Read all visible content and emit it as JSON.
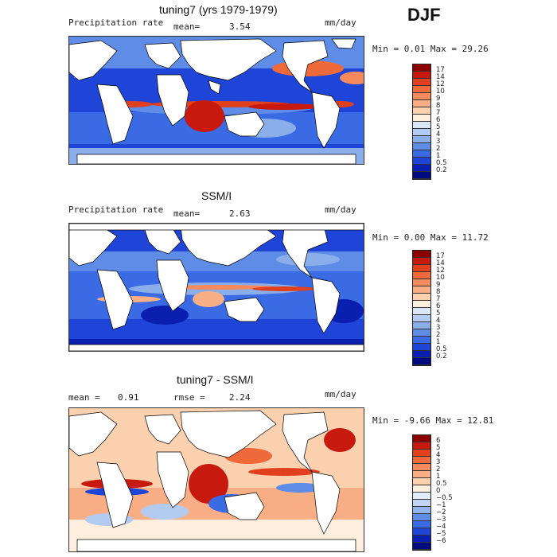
{
  "season": "DJF",
  "panels": [
    {
      "title": "tuning7 (yrs 1979-1979)",
      "left_label": "Precipitation rate",
      "mean_label": "mean=",
      "mean_value": "3.54",
      "units": "mm/day",
      "minmax": "Min =    0.01 Max =   29.26",
      "colorbar_labels": [
        "17",
        "14",
        "12",
        "10",
        "9",
        "8",
        "7",
        "6",
        "5",
        "4",
        "3",
        "2",
        "1",
        "0.5",
        "0.2"
      ],
      "colorbar_colors": [
        "#8b0000",
        "#c8190f",
        "#e0401e",
        "#ee6a3a",
        "#f58a5c",
        "#f9ae86",
        "#fcd1b0",
        "#fdeedd",
        "#dbe6f6",
        "#b3cbf0",
        "#8aaeea",
        "#5e8ce6",
        "#3a6ae4",
        "#1f44d8",
        "#0a1fb0",
        "#000a80"
      ]
    },
    {
      "title": "SSM/I",
      "left_label": "Precipitation rate",
      "mean_label": "mean=",
      "mean_value": "2.63",
      "units": "mm/day",
      "minmax": "Min =    0.00 Max =   11.72",
      "colorbar_labels": [
        "17",
        "14",
        "12",
        "10",
        "9",
        "8",
        "7",
        "6",
        "5",
        "4",
        "3",
        "2",
        "1",
        "0.5",
        "0.2"
      ],
      "colorbar_colors": [
        "#8b0000",
        "#c8190f",
        "#e0401e",
        "#ee6a3a",
        "#f58a5c",
        "#f9ae86",
        "#fcd1b0",
        "#fdeedd",
        "#dbe6f6",
        "#b3cbf0",
        "#8aaeea",
        "#5e8ce6",
        "#3a6ae4",
        "#1f44d8",
        "#0a1fb0",
        "#000a80"
      ]
    },
    {
      "title": "tuning7 - SSM/I",
      "left_label": "mean =",
      "left_value": "0.91",
      "mean_label": "rmse =",
      "mean_value": "2.24",
      "units": "mm/day",
      "minmax": "Min =  -9.66 Max =   12.81",
      "colorbar_labels": [
        "6",
        "5",
        "4",
        "3",
        "2",
        "1",
        "0.5",
        "0",
        "−0.5",
        "−1",
        "−2",
        "−3",
        "−4",
        "−5",
        "−6"
      ],
      "colorbar_colors": [
        "#8b0000",
        "#c8190f",
        "#e0401e",
        "#ee6a3a",
        "#f58a5c",
        "#f9ae86",
        "#fcd1b0",
        "#fdeedd",
        "#e3ecfa",
        "#c2d6f4",
        "#93b4ec",
        "#5e8ce6",
        "#3a6ae4",
        "#1f44d8",
        "#0a1fb0",
        "#000a80"
      ]
    }
  ]
}
